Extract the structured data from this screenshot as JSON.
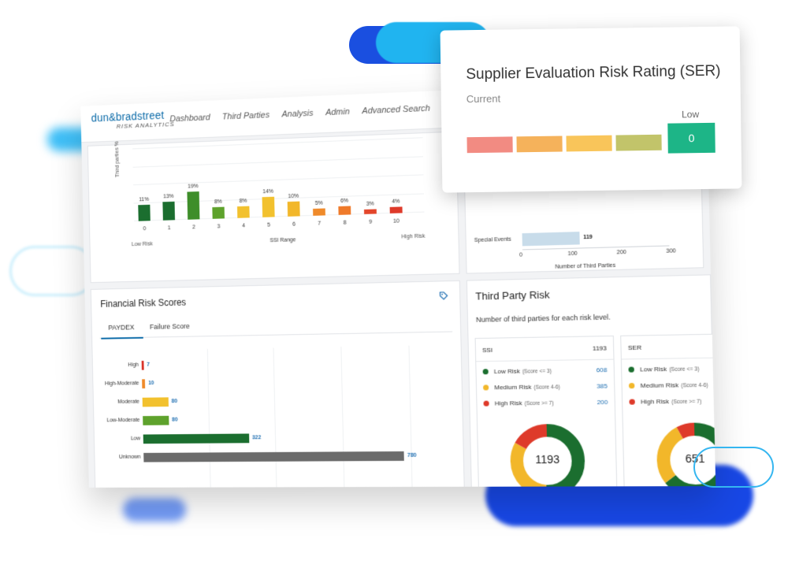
{
  "header": {
    "logo_name": "dun&bradstreet",
    "logo_sub": "RISK ANALYTICS",
    "nav": [
      "Dashboard",
      "Third Parties",
      "Analysis",
      "Admin",
      "Advanced Search"
    ]
  },
  "ssi_chart": {
    "ylabel": "Third parties %",
    "xlabel": "SSI Range",
    "low_label": "Low Risk",
    "high_label": "High Risk",
    "categories": [
      "0",
      "1",
      "2",
      "3",
      "4",
      "5",
      "6",
      "7",
      "8",
      "9",
      "10"
    ],
    "values": [
      11,
      13,
      19,
      8,
      8,
      14,
      10,
      5,
      6,
      3,
      4
    ],
    "value_labels": [
      "11%",
      "13%",
      "19%",
      "8%",
      "8%",
      "14%",
      "10%",
      "5%",
      "6%",
      "3%",
      "4%"
    ],
    "colors": [
      "#1b6e2f",
      "#1b6e2f",
      "#3e8e2a",
      "#5ea22c",
      "#f2c12e",
      "#f2c12e",
      "#f2b72a",
      "#ef8a2a",
      "#ef7a2a",
      "#e3462b",
      "#de3a2a"
    ],
    "ylim": [
      0,
      50
    ]
  },
  "special_events": {
    "label": "Special Events",
    "value": 119,
    "value_label": "119",
    "ticks": [
      "0",
      "100",
      "200",
      "300"
    ],
    "xlim": [
      0,
      300
    ],
    "xlabel": "Number of Third Parties"
  },
  "financial": {
    "title": "Financial Risk Scores",
    "tabs": [
      "PAYDEX",
      "Failure Score"
    ],
    "rows": [
      {
        "label": "High",
        "value": 7,
        "value_label": "7",
        "color": "#d9342b"
      },
      {
        "label": "High-Moderate",
        "value": 10,
        "value_label": "10",
        "color": "#ef8a2a"
      },
      {
        "label": "Moderate",
        "value": 80,
        "value_label": "80",
        "color": "#f2c12e"
      },
      {
        "label": "Low-Moderate",
        "value": 80,
        "value_label": "80",
        "color": "#5ea22c"
      },
      {
        "label": "Low",
        "value": 322,
        "value_label": "322",
        "color": "#1b6e2f"
      },
      {
        "label": "Unknown",
        "value": 780,
        "value_label": "780",
        "color": "#6b6b6b"
      }
    ],
    "xmax": 800
  },
  "third_party": {
    "title": "Third Party Risk",
    "subtitle": "Number of third parties for each risk level.",
    "ssi": {
      "name": "SSI",
      "total": "1193",
      "legend": [
        {
          "label": "Low Risk",
          "range": "(Score <= 3)",
          "value": "608",
          "color": "#1b6e2f"
        },
        {
          "label": "Medium Risk",
          "range": "(Score 4-6)",
          "value": "385",
          "color": "#f2b72a"
        },
        {
          "label": "High Risk",
          "range": "(Score >= 7)",
          "value": "200",
          "color": "#de3a2a"
        }
      ],
      "donut_values": [
        608,
        385,
        200
      ],
      "center": "1193"
    },
    "ser": {
      "name": "SER",
      "legend": [
        {
          "label": "Low Risk",
          "range": "(Score <= 3)",
          "color": "#1b6e2f"
        },
        {
          "label": "Medium Risk",
          "range": "(Score 4-6)",
          "color": "#f2b72a"
        },
        {
          "label": "High Risk",
          "range": "(Score >= 7)",
          "color": "#de3a2a"
        }
      ],
      "donut_values": [
        420,
        180,
        51
      ],
      "center": "651"
    }
  },
  "ser_popup": {
    "title": "Supplier Evaluation Risk Rating (SER)",
    "subtitle": "Current",
    "level_label": "Low",
    "value": "0",
    "scale_colors": [
      "#f28b82",
      "#f5b25b",
      "#f9c55a",
      "#c2c46a"
    ],
    "badge_color": "#1db587"
  }
}
